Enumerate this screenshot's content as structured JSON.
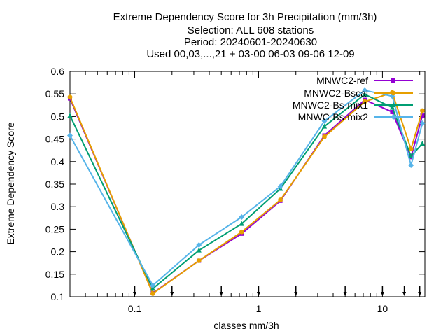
{
  "chart_data": {
    "type": "line",
    "title_lines": [
      "Extreme Dependency Score  for 3h Precipitation (mm/3h)",
      "Selection: ALL    608 stations",
      "Period: 20240601-20240630",
      "Used 00,03,...,21 + 03-00 06-03 09-06 12-09"
    ],
    "xlabel": "classes mm/3h",
    "ylabel": "Extreme Dependency Score",
    "x_scale": "log",
    "xlim": [
      0.03,
      22
    ],
    "ylim": [
      0.1,
      0.6
    ],
    "x_ticks": [
      0.1,
      1,
      10
    ],
    "x_tick_labels": [
      "0.1",
      "1",
      "10"
    ],
    "y_ticks": [
      0.1,
      0.15,
      0.2,
      0.25,
      0.3,
      0.35,
      0.4,
      0.45,
      0.5,
      0.55,
      0.6
    ],
    "y_tick_labels": [
      "0.1",
      "0.15",
      "0.2",
      "0.25",
      "0.3",
      "0.35",
      "0.4",
      "0.45",
      "0.5",
      "0.55",
      "0.6"
    ],
    "threshold_markers": [
      0.1,
      0.2,
      0.5,
      1,
      2,
      5,
      10,
      15,
      20
    ],
    "grid": false,
    "legend_position": "top-right",
    "x": [
      0.03,
      0.14,
      0.33,
      0.73,
      1.5,
      3.4,
      7.2,
      12,
      17,
      21
    ],
    "series": [
      {
        "name": "MNWC2-ref",
        "color": "#9400d3",
        "marker": "filled-square",
        "values": [
          0.54,
          0.108,
          0.18,
          0.24,
          0.313,
          0.458,
          0.537,
          0.51,
          0.41,
          0.502
        ]
      },
      {
        "name": "MNWC2-Bscal",
        "color": "#e69f00",
        "marker": "filled-circle",
        "values": [
          0.543,
          0.107,
          0.18,
          0.244,
          0.315,
          0.455,
          0.533,
          0.553,
          0.428,
          0.513
        ]
      },
      {
        "name": "MNWC2-Bs-mix1",
        "color": "#009e73",
        "marker": "filled-triangle-up",
        "values": [
          0.502,
          0.118,
          0.203,
          0.262,
          0.34,
          0.478,
          0.549,
          0.52,
          0.412,
          0.44
        ]
      },
      {
        "name": "MNWC-Bs-mix2",
        "color": "#56b4e9",
        "marker": "filled-diamond",
        "values": [
          0.458,
          0.125,
          0.215,
          0.277,
          0.345,
          0.49,
          0.558,
          0.545,
          0.392,
          0.485
        ]
      }
    ]
  }
}
